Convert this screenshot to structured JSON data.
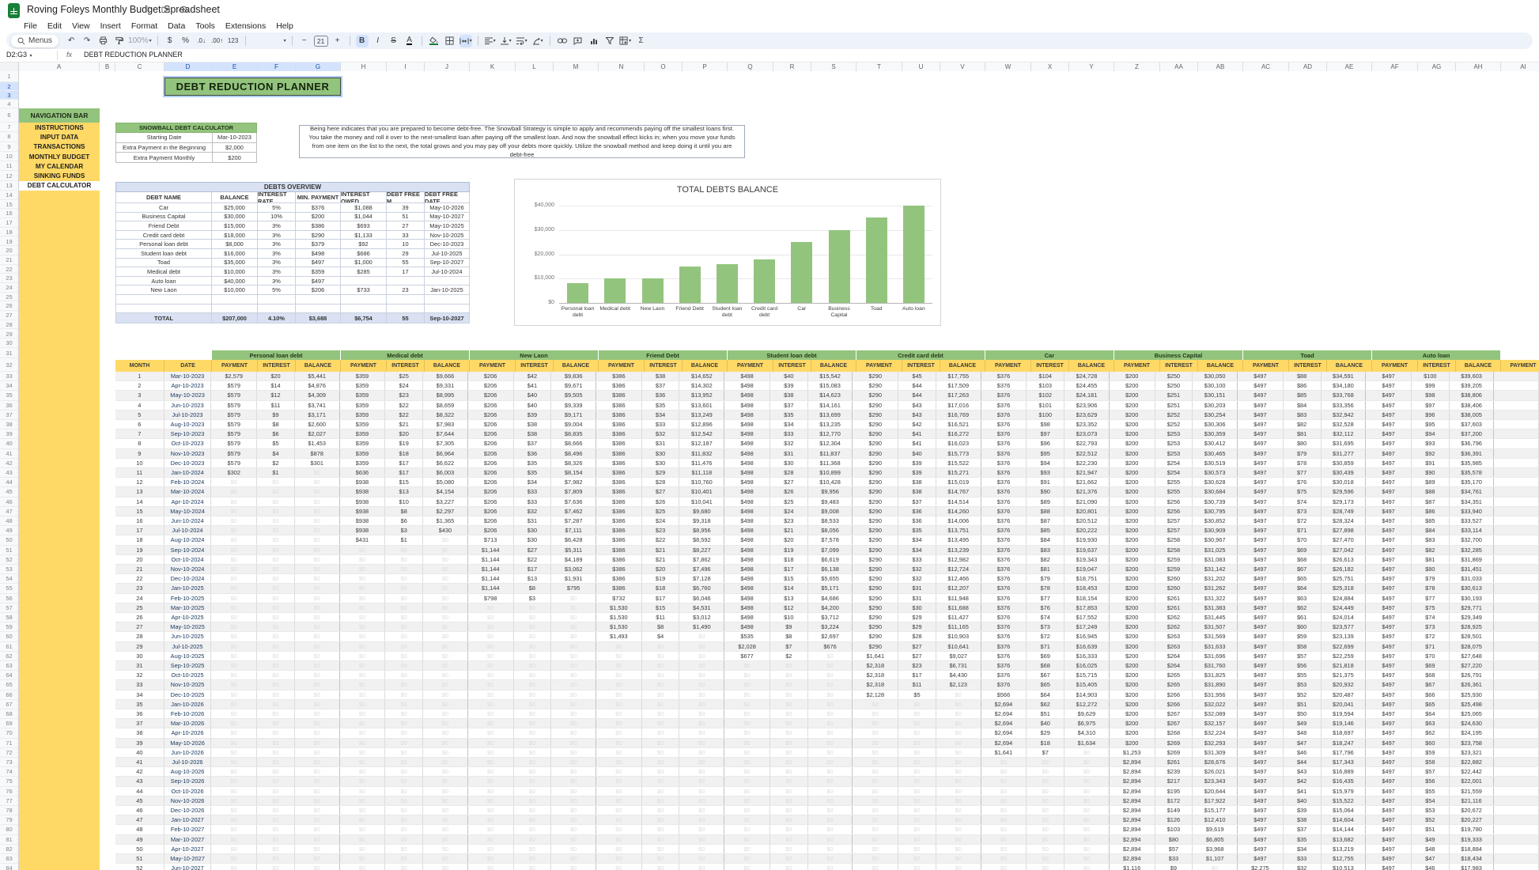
{
  "window": {
    "title": "Roving Foleys Monthly Budget Spreadsheet",
    "menus": [
      "File",
      "Edit",
      "View",
      "Insert",
      "Format",
      "Data",
      "Tools",
      "Extensions",
      "Help"
    ],
    "title_icons": [
      "star-icon",
      "move-folder-icon",
      "cloud-saved-icon"
    ]
  },
  "toolbar": {
    "menus_label": "Menus",
    "zoom": "100%",
    "font_size": "21",
    "currency": "$",
    "percent": "%",
    "decrease_decimals": ".0",
    "increase_decimals": ".00",
    "format_123": "123",
    "minus": "−",
    "plus": "+",
    "bold": "B",
    "italic": "I",
    "strikethrough": "S",
    "text_color": "A",
    "functions": "Σ",
    "undo": "↶",
    "redo": "↷"
  },
  "formula_bar": {
    "range": "D2:G3",
    "fx": "fx",
    "value": "DEBT REDUCTION PLANNER"
  },
  "sheet": {
    "banner": "DEBT REDUCTION PLANNER",
    "nav": {
      "header": "NAVIGATION BAR",
      "items": [
        "INSTRUCTIONS",
        "INPUT DATA",
        "TRANSACTIONS",
        "MONTHLY BUDGET",
        "MY CALENDAR",
        "SINKING FUNDS",
        "DEBT CALCULATOR"
      ],
      "current": "DEBT CALCULATOR"
    },
    "snowball": {
      "title": "SNOWBALL DEBT CALCULATOR",
      "rows": [
        [
          "Starting Date",
          "Mar-10-2023"
        ],
        [
          "Extra Payment in the Beginning",
          "$2,000"
        ],
        [
          "Extra Payment Monthly",
          "$200"
        ]
      ]
    },
    "info_text": "Being here indicates that you are prepared to become debt-free. The Snowball Strategy is simple to apply and recommends paying off the smallest loans first. You take the money and roll it over to the next-smallest loan after paying off the smallest loan. And now the snowball effect kicks in; when you move your funds from one item on the list to the next, the total grows and you may pay off your debts more quickly. Utilize the snowball method and keep doing it until you are debt-free",
    "overview": {
      "title": "DEBTS OVERVIEW",
      "headers": [
        "DEBT NAME",
        "BALANCE",
        "INTEREST RATE",
        "MIN. PAYMENT",
        "INTEREST OWED",
        "DEBT FREE M.",
        "DEBT FREE DATE"
      ],
      "rows": [
        [
          "Car",
          "$25,000",
          "5%",
          "$376",
          "$1,088",
          "39",
          "May-10-2026"
        ],
        [
          "Business Capital",
          "$30,000",
          "10%",
          "$200",
          "$1,044",
          "51",
          "May-10-2027"
        ],
        [
          "Friend Debt",
          "$15,000",
          "3%",
          "$386",
          "$693",
          "27",
          "May-10-2025"
        ],
        [
          "Credit card debt",
          "$18,000",
          "3%",
          "$290",
          "$1,133",
          "33",
          "Nov-10-2025"
        ],
        [
          "Personal loan debt",
          "$8,000",
          "3%",
          "$379",
          "$92",
          "10",
          "Dec-10-2023"
        ],
        [
          "Student loan debt",
          "$16,000",
          "3%",
          "$498",
          "$686",
          "29",
          "Jul-10-2025"
        ],
        [
          "Toad",
          "$35,000",
          "3%",
          "$497",
          "$1,000",
          "55",
          "Sep-10-2027"
        ],
        [
          "Medical debt",
          "$10,000",
          "3%",
          "$359",
          "$285",
          "17",
          "Jul-10-2024"
        ],
        [
          "Auto loan",
          "$40,000",
          "3%",
          "$497",
          "",
          "",
          ""
        ],
        [
          "New Laon",
          "$10,000",
          "5%",
          "$206",
          "$733",
          "23",
          "Jan-10-2025"
        ],
        [
          "",
          "",
          "",
          "",
          "",
          "",
          ""
        ],
        [
          "",
          "",
          "",
          "",
          "",
          "",
          ""
        ]
      ],
      "total": [
        "TOTAL",
        "$207,000",
        "4.10%",
        "$3,688",
        "$6,754",
        "55",
        "Sep-10-2027"
      ]
    },
    "schedule": {
      "month_header": "MONTH",
      "date_header": "DATE",
      "sub_headers": [
        "PAYMENT",
        "INTEREST",
        "BALANCE"
      ],
      "extra_column_header": "PAYMENT",
      "start": {
        "year": 2023,
        "month": 3,
        "day": 10
      },
      "extra_first": 2000,
      "extra_monthly": 200,
      "months_rendered": 52,
      "debts": [
        {
          "name": "Personal loan debt",
          "balance": 8000,
          "rate": 3,
          "min_payment": 379
        },
        {
          "name": "Medical debt",
          "balance": 10000,
          "rate": 3,
          "min_payment": 359
        },
        {
          "name": "New Laon",
          "balance": 10000,
          "rate": 5,
          "min_payment": 206
        },
        {
          "name": "Friend Debt",
          "balance": 15000,
          "rate": 3,
          "min_payment": 386
        },
        {
          "name": "Student loan debt",
          "balance": 16000,
          "rate": 3,
          "min_payment": 498
        },
        {
          "name": "Credit card debt",
          "balance": 18000,
          "rate": 3,
          "min_payment": 290
        },
        {
          "name": "Car",
          "balance": 25000,
          "rate": 5,
          "min_payment": 376
        },
        {
          "name": "Business Capital",
          "balance": 30000,
          "rate": 10,
          "min_payment": 200
        },
        {
          "name": "Toad",
          "balance": 35000,
          "rate": 3,
          "min_payment": 497
        },
        {
          "name": "Auto loan",
          "balance": 40000,
          "rate": 3,
          "min_payment": 497
        }
      ]
    }
  },
  "chart_data": {
    "type": "bar",
    "title": "TOTAL DEBTS BALANCE",
    "categories": [
      "Personal loan debt",
      "Medical debt",
      "New Laon",
      "Friend Debt",
      "Student loan debt",
      "Credit card debt",
      "Car",
      "Business Capital",
      "Toad",
      "Auto loan"
    ],
    "values": [
      8000,
      10000,
      10000,
      15000,
      16000,
      18000,
      25000,
      30000,
      35000,
      40000
    ],
    "xlabel": "",
    "ylabel": "",
    "ylim": [
      0,
      40000
    ],
    "yticks": [
      "$0",
      "$10,000",
      "$20,000",
      "$30,000",
      "$40,000"
    ],
    "grid": true,
    "legend": "none",
    "bar_color": "#93c47d"
  },
  "colors": {
    "green": "#93c47d",
    "yellow": "#ffd966",
    "total_row": "#d9e1f2",
    "selection": "#d3e3fd",
    "date_text": "#17365d",
    "paid_off_text": "#dcdcdc",
    "toolbar_band": "#eef3fa"
  }
}
